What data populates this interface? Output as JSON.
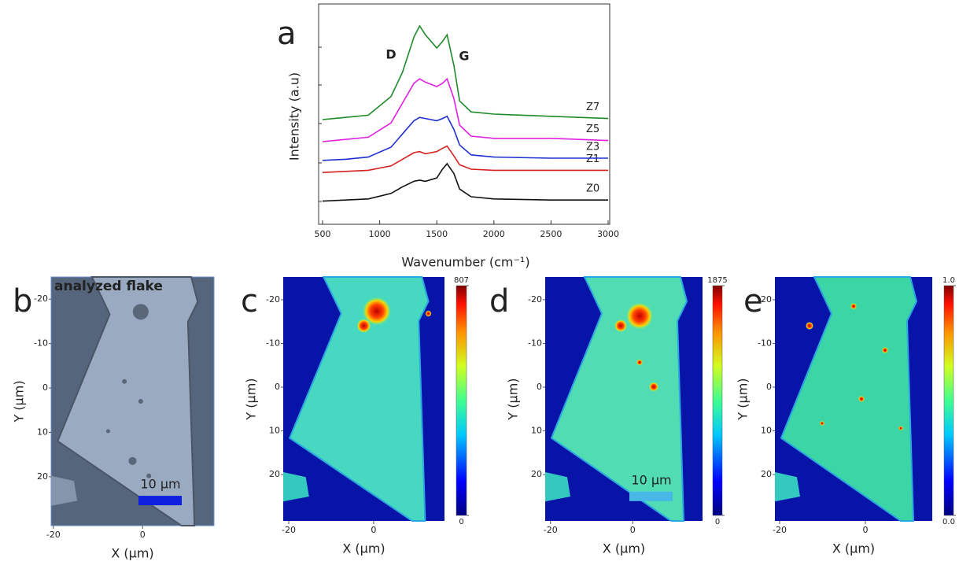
{
  "chart_data": [
    {
      "type": "line",
      "panel": "a",
      "xlabel": "Wavenumber (cm⁻¹)",
      "ylabel": "Intensity (a.u)",
      "annotations": [
        "D",
        "G"
      ],
      "x": [
        500,
        700,
        900,
        1100,
        1200,
        1300,
        1350,
        1400,
        1500,
        1550,
        1590,
        1650,
        1700,
        1800,
        2000,
        2500,
        3000
      ],
      "series": [
        {
          "name": "Z0",
          "color": "#111111",
          "values": [
            1.05,
            1.1,
            1.15,
            1.4,
            1.7,
            1.95,
            2.0,
            1.95,
            2.1,
            2.5,
            2.75,
            2.3,
            1.6,
            1.25,
            1.15,
            1.1,
            1.1
          ]
        },
        {
          "name": "Z1",
          "color": "#d62020",
          "values": [
            2.35,
            2.4,
            2.45,
            2.65,
            2.95,
            3.25,
            3.3,
            3.2,
            3.3,
            3.45,
            3.55,
            3.1,
            2.7,
            2.5,
            2.45,
            2.45,
            2.45
          ]
        },
        {
          "name": "Z3",
          "color": "#1f2fd0",
          "values": [
            2.9,
            2.95,
            3.05,
            3.5,
            4.1,
            4.7,
            4.85,
            4.8,
            4.7,
            4.8,
            4.9,
            4.3,
            3.6,
            3.15,
            3.05,
            3.0,
            3.0
          ]
        },
        {
          "name": "Z5",
          "color": "#e020e0",
          "values": [
            3.75,
            3.85,
            3.95,
            4.6,
            5.5,
            6.4,
            6.6,
            6.45,
            6.25,
            6.4,
            6.6,
            5.7,
            4.5,
            4.0,
            3.9,
            3.9,
            3.8
          ]
        },
        {
          "name": "Z7",
          "color": "#1e8a2a",
          "values": [
            4.75,
            4.85,
            4.95,
            5.8,
            6.9,
            8.5,
            9.0,
            8.6,
            8.0,
            8.3,
            8.6,
            7.2,
            5.6,
            5.1,
            5.0,
            4.9,
            4.8
          ]
        }
      ],
      "xlim": [
        500,
        3000
      ],
      "xticks": [
        500,
        1000,
        1500,
        2000,
        2500,
        3000
      ],
      "ylim": [
        0,
        10
      ]
    },
    {
      "type": "map",
      "panel": "b",
      "annotation": "analyzed flake",
      "scalebar": "10 µm",
      "xlabel": "X (µm)",
      "ylabel": "Y (µm)",
      "xlim": [
        -20.5,
        16
      ],
      "xticks": [
        -20,
        0
      ],
      "ylim": [
        -25,
        31
      ],
      "yticks": [
        -20,
        -10,
        0,
        10,
        20
      ]
    },
    {
      "type": "map",
      "panel": "c",
      "xlabel": "X (µm)",
      "ylabel": "Y (µm)",
      "xlim": [
        -21.3,
        16.7
      ],
      "xticks": [
        -20,
        0
      ],
      "ylim": [
        -25.2,
        30.6
      ],
      "yticks": [
        -20,
        -10,
        0,
        10,
        20
      ],
      "colorbar": {
        "lim": [
          0,
          807
        ],
        "ticks": [
          0,
          807
        ]
      }
    },
    {
      "type": "map",
      "panel": "d",
      "scalebar": "10 µm",
      "xlabel": "X (µm)",
      "ylabel": "Y (µm)",
      "xlim": [
        -21.3,
        17
      ],
      "xticks": [
        -20,
        0
      ],
      "ylim": [
        -25.2,
        30.6
      ],
      "yticks": [
        -20,
        -10,
        0,
        10,
        20
      ],
      "colorbar": {
        "lim": [
          0,
          1875
        ],
        "ticks": [
          0,
          1875
        ]
      }
    },
    {
      "type": "map",
      "panel": "e",
      "xlabel": "X (µm)",
      "ylabel": "Y (µm)",
      "xlim": [
        -21.1,
        15.6
      ],
      "xticks": [
        -20,
        0
      ],
      "ylim": [
        -25.2,
        30.6
      ],
      "yticks": [
        -20,
        -10,
        0,
        10,
        20
      ],
      "colorbar": {
        "lim": [
          0,
          1
        ],
        "ticks": [
          {
            "value": 0,
            "label": "0.0"
          },
          {
            "value": 1,
            "label": "1.0"
          }
        ]
      }
    }
  ]
}
